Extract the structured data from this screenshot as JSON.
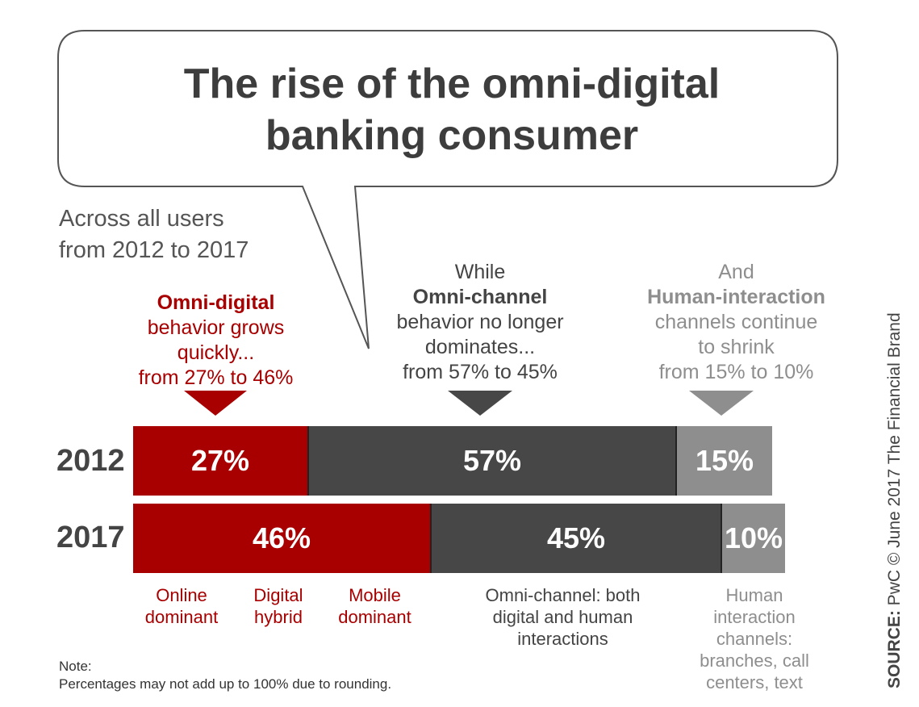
{
  "title_line1": "The rise of the omni-digital",
  "title_line2": "banking consumer",
  "subtitle_line1": "Across all users",
  "subtitle_line2": "from 2012 to 2017",
  "callouts": {
    "digital": {
      "heading": "Omni-digital",
      "line1": "behavior grows",
      "line2": "quickly...",
      "line3": "from 27% to 46%"
    },
    "omni": {
      "pre": "While",
      "heading": "Omni-channel",
      "line1": "behavior no longer",
      "line2": "dominates...",
      "line3": "from 57% to 45%"
    },
    "human": {
      "pre": "And",
      "heading": "Human-interaction",
      "line1": "channels continue",
      "line2": "to shrink",
      "line3": "from 15% to 10%"
    }
  },
  "category_labels": {
    "online_1": "Online",
    "online_2": "dominant",
    "digital_1": "Digital",
    "digital_2": "hybrid",
    "mobile_1": "Mobile",
    "mobile_2": "dominant",
    "omni_1": "Omni-channel: both",
    "omni_2": "digital and human",
    "omni_3": "interactions",
    "human_1": "Human",
    "human_2": "interaction",
    "human_3": "channels:",
    "human_4": "branches, call",
    "human_5": "centers, text"
  },
  "note_line1": "Note:",
  "note_line2": "Percentages may not add up to 100% due to rounding.",
  "source_label": "SOURCE:",
  "source_text": "PwC © June 2017 The Financial Brand",
  "colors": {
    "digital": "#a80000",
    "omni": "#474747",
    "human": "#8e8e8e",
    "text": "#444444"
  },
  "chart_data": {
    "type": "bar",
    "orientation": "horizontal",
    "stacked": true,
    "title": "The rise of the omni-digital banking consumer",
    "categories": [
      "2012",
      "2017"
    ],
    "series": [
      {
        "name": "Omni-digital",
        "values": [
          27,
          46
        ],
        "labels": [
          "27%",
          "46%"
        ]
      },
      {
        "name": "Omni-channel",
        "values": [
          57,
          45
        ],
        "labels": [
          "57%",
          "45%"
        ]
      },
      {
        "name": "Human-interaction",
        "values": [
          15,
          10
        ],
        "labels": [
          "15%",
          "10%"
        ]
      }
    ],
    "xlim": [
      0,
      100
    ],
    "xlabel": "",
    "ylabel": ""
  }
}
